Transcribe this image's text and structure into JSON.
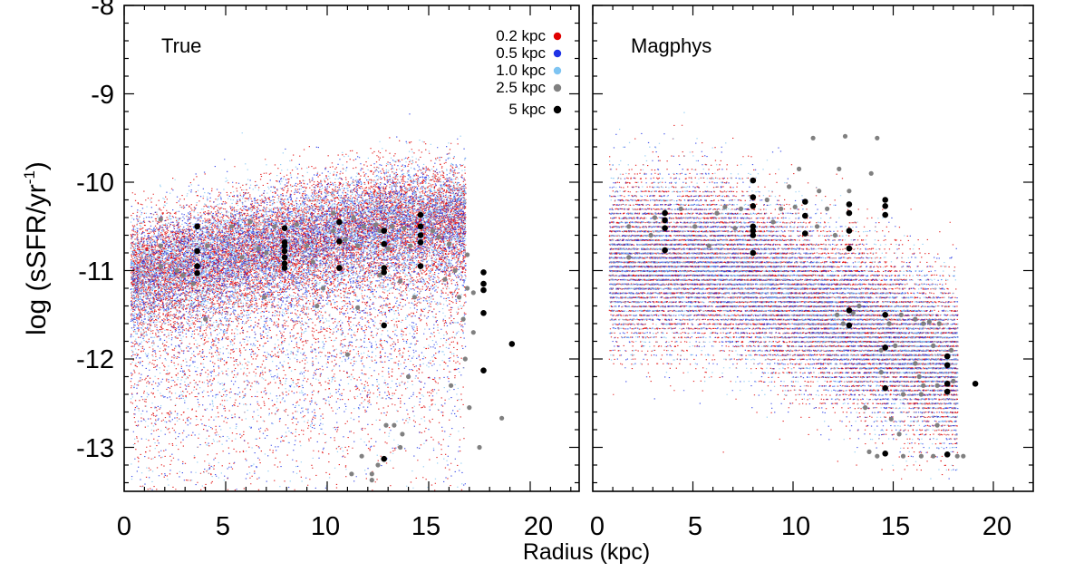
{
  "chart_data": {
    "type": "scatter",
    "ylabel": "log (sSFR/yr⁻¹)",
    "ylabel_main": "log (sSFR/yr",
    "ylabel_sup": "-1",
    "ylabel_close": ")",
    "xlabel": "Radius (kpc)",
    "xlim": [
      0,
      22
    ],
    "ylim": [
      -13.5,
      -8
    ],
    "x_ticks": [
      "0",
      "5",
      "10",
      "15",
      "20"
    ],
    "y_ticks": [
      "-8",
      "-9",
      "-10",
      "-11",
      "-12",
      "-13"
    ],
    "legend": {
      "position": "top-right of left panel",
      "entries": [
        {
          "label": "0.2 kpc",
          "color": "#e00000"
        },
        {
          "label": "0.5 kpc",
          "color": "#1f33e6"
        },
        {
          "label": "1.0 kpc",
          "color": "#7ec4f2"
        },
        {
          "label": "2.5 kpc",
          "color": "#808080"
        },
        {
          "label": "5 kpc",
          "color": "#000000"
        }
      ]
    },
    "panels": [
      {
        "title": "True",
        "series": [
          {
            "name": "2.5 kpc",
            "color": "#808080",
            "points": [
              [
                1.8,
                -10.42
              ],
              [
                1.8,
                -10.72
              ],
              [
                1.8,
                -10.95
              ],
              [
                2.6,
                -11.0
              ],
              [
                2.9,
                -11.05
              ],
              [
                3.4,
                -11.15
              ],
              [
                4.0,
                -11.55
              ],
              [
                4.1,
                -10.72
              ],
              [
                5.3,
                -10.5
              ],
              [
                5.8,
                -10.85
              ],
              [
                6.2,
                -10.45
              ],
              [
                6.6,
                -10.75
              ],
              [
                7.0,
                -10.8
              ],
              [
                7.4,
                -10.5
              ],
              [
                8.5,
                -10.48
              ],
              [
                9.0,
                -10.72
              ],
              [
                9.3,
                -10.9
              ],
              [
                9.8,
                -11.2
              ],
              [
                10.3,
                -10.55
              ],
              [
                10.3,
                -10.35
              ],
              [
                10.9,
                -10.65
              ],
              [
                11.3,
                -10.4
              ],
              [
                11.5,
                -10.72
              ],
              [
                11.8,
                -10.5
              ],
              [
                11.5,
                -11.42
              ],
              [
                11.0,
                -11.95
              ],
              [
                12.4,
                -10.48
              ],
              [
                12.6,
                -10.55
              ],
              [
                12.6,
                -11.05
              ],
              [
                13.0,
                -10.75
              ],
              [
                13.2,
                -10.5
              ],
              [
                13.6,
                -11.12
              ],
              [
                13.8,
                -10.52
              ],
              [
                14.1,
                -10.72
              ],
              [
                14.0,
                -12.2
              ],
              [
                13.6,
                -13.0
              ],
              [
                13.3,
                -12.75
              ],
              [
                13.7,
                -12.85
              ],
              [
                14.3,
                -11.3
              ],
              [
                15.2,
                -10.55
              ],
              [
                15.5,
                -10.62
              ],
              [
                15.8,
                -11.1
              ],
              [
                16.0,
                -10.7
              ],
              [
                16.3,
                -11.0
              ],
              [
                16.5,
                -11.3
              ],
              [
                16.7,
                -11.55
              ],
              [
                16.8,
                -12.0
              ],
              [
                16.9,
                -10.82
              ],
              [
                16.9,
                -11.2
              ],
              [
                17.2,
                -11.25
              ],
              [
                17.2,
                -11.7
              ],
              [
                16.1,
                -12.3
              ],
              [
                17.0,
                -12.55
              ],
              [
                17.5,
                -13.0
              ],
              [
                18.6,
                -12.67
              ],
              [
                12.2,
                -13.3
              ],
              [
                12.5,
                -13.2
              ],
              [
                11.7,
                -13.1
              ],
              [
                11.2,
                -13.3
              ],
              [
                12.2,
                -13.37
              ],
              [
                12.9,
                -12.75
              ],
              [
                9.5,
                -11.4
              ],
              [
                6.9,
                -11.3
              ]
            ]
          },
          {
            "name": "5 kpc",
            "color": "#000000",
            "points": [
              [
                3.6,
                -10.5
              ],
              [
                3.6,
                -10.78
              ],
              [
                3.6,
                -10.95
              ],
              [
                3.6,
                -11.03
              ],
              [
                7.9,
                -10.52
              ],
              [
                7.9,
                -10.68
              ],
              [
                7.9,
                -10.72
              ],
              [
                7.9,
                -10.78
              ],
              [
                7.9,
                -10.85
              ],
              [
                7.9,
                -10.92
              ],
              [
                7.9,
                -10.97
              ],
              [
                10.6,
                -10.45
              ],
              [
                10.6,
                -10.67
              ],
              [
                10.6,
                -10.97
              ],
              [
                12.8,
                -10.55
              ],
              [
                12.8,
                -10.7
              ],
              [
                12.8,
                -10.97
              ],
              [
                12.8,
                -11.02
              ],
              [
                12.8,
                -11.62
              ],
              [
                12.8,
                -13.13
              ],
              [
                14.6,
                -10.37
              ],
              [
                14.6,
                -10.5
              ],
              [
                14.6,
                -10.6
              ],
              [
                14.6,
                -10.68
              ],
              [
                14.6,
                -10.95
              ],
              [
                17.7,
                -11.02
              ],
              [
                17.7,
                -11.15
              ],
              [
                17.7,
                -11.22
              ],
              [
                17.7,
                -11.48
              ],
              [
                17.7,
                -12.13
              ],
              [
                19.1,
                -11.83
              ]
            ]
          }
        ]
      },
      {
        "title": "Magphys",
        "series": [
          {
            "name": "2.5 kpc",
            "color": "#808080",
            "points": [
              [
                1.8,
                -10.5
              ],
              [
                1.8,
                -10.85
              ],
              [
                2.9,
                -10.6
              ],
              [
                3.1,
                -10.4
              ],
              [
                4.4,
                -10.3
              ],
              [
                5.1,
                -10.5
              ],
              [
                5.8,
                -10.72
              ],
              [
                6.2,
                -10.35
              ],
              [
                6.6,
                -10.28
              ],
              [
                7.1,
                -10.52
              ],
              [
                7.4,
                -10.3
              ],
              [
                8.7,
                -10.2
              ],
              [
                9.0,
                -10.45
              ],
              [
                9.4,
                -10.3
              ],
              [
                9.8,
                -10.05
              ],
              [
                10.1,
                -10.28
              ],
              [
                10.3,
                -9.85
              ],
              [
                11.2,
                -10.5
              ],
              [
                11.3,
                -10.1
              ],
              [
                11.7,
                -10.3
              ],
              [
                12.3,
                -9.85
              ],
              [
                12.1,
                -10.6
              ],
              [
                12.8,
                -10.1
              ],
              [
                12.2,
                -11.5
              ],
              [
                12.5,
                -11.6
              ],
              [
                13.3,
                -11.4
              ],
              [
                13.9,
                -9.9
              ],
              [
                14.2,
                -9.5
              ],
              [
                14.4,
                -11.9
              ],
              [
                14.4,
                -12.15
              ],
              [
                14.8,
                -11.6
              ],
              [
                15.1,
                -11.85
              ],
              [
                15.4,
                -11.5
              ],
              [
                16.1,
                -11.55
              ],
              [
                16.5,
                -11.6
              ],
              [
                16.8,
                -11.58
              ],
              [
                17.0,
                -11.85
              ],
              [
                16.1,
                -12.05
              ],
              [
                16.3,
                -12.2
              ],
              [
                16.5,
                -12.3
              ],
              [
                17.3,
                -11.6
              ],
              [
                17.2,
                -12.3
              ],
              [
                16.4,
                -12.4
              ],
              [
                17.9,
                -11.9
              ],
              [
                18.0,
                -12.25
              ],
              [
                17.2,
                -12.75
              ],
              [
                16.4,
                -13.1
              ],
              [
                17.0,
                -13.1
              ],
              [
                18.2,
                -13.1
              ],
              [
                18.5,
                -13.1
              ],
              [
                15.5,
                -13.1
              ],
              [
                15.3,
                -12.85
              ],
              [
                14.9,
                -12.68
              ],
              [
                13.8,
                -13.05
              ],
              [
                14.2,
                -13.1
              ],
              [
                13.6,
                -12.55
              ],
              [
                15.5,
                -12.4
              ],
              [
                13.0,
                -11.48
              ],
              [
                11.0,
                -9.5
              ],
              [
                12.6,
                -9.48
              ]
            ]
          },
          {
            "name": "5 kpc",
            "color": "#000000",
            "points": [
              [
                3.6,
                -10.35
              ],
              [
                3.6,
                -10.43
              ],
              [
                3.6,
                -10.52
              ],
              [
                3.6,
                -10.77
              ],
              [
                8.0,
                -9.98
              ],
              [
                8.0,
                -10.17
              ],
              [
                8.0,
                -10.27
              ],
              [
                8.0,
                -10.5
              ],
              [
                8.0,
                -10.55
              ],
              [
                8.0,
                -10.6
              ],
              [
                8.0,
                -10.8
              ],
              [
                10.6,
                -10.22
              ],
              [
                10.6,
                -10.38
              ],
              [
                10.6,
                -10.58
              ],
              [
                12.8,
                -10.25
              ],
              [
                12.8,
                -10.35
              ],
              [
                12.8,
                -10.55
              ],
              [
                12.8,
                -10.75
              ],
              [
                12.8,
                -11.45
              ],
              [
                12.8,
                -11.62
              ],
              [
                14.6,
                -10.2
              ],
              [
                14.6,
                -10.27
              ],
              [
                14.6,
                -10.37
              ],
              [
                14.6,
                -11.5
              ],
              [
                14.6,
                -11.87
              ],
              [
                14.6,
                -12.33
              ],
              [
                14.6,
                -13.07
              ],
              [
                17.7,
                -11.97
              ],
              [
                17.7,
                -12.07
              ],
              [
                17.7,
                -12.28
              ],
              [
                17.7,
                -12.37
              ],
              [
                17.7,
                -13.08
              ],
              [
                19.1,
                -12.28
              ]
            ]
          }
        ]
      }
    ]
  }
}
